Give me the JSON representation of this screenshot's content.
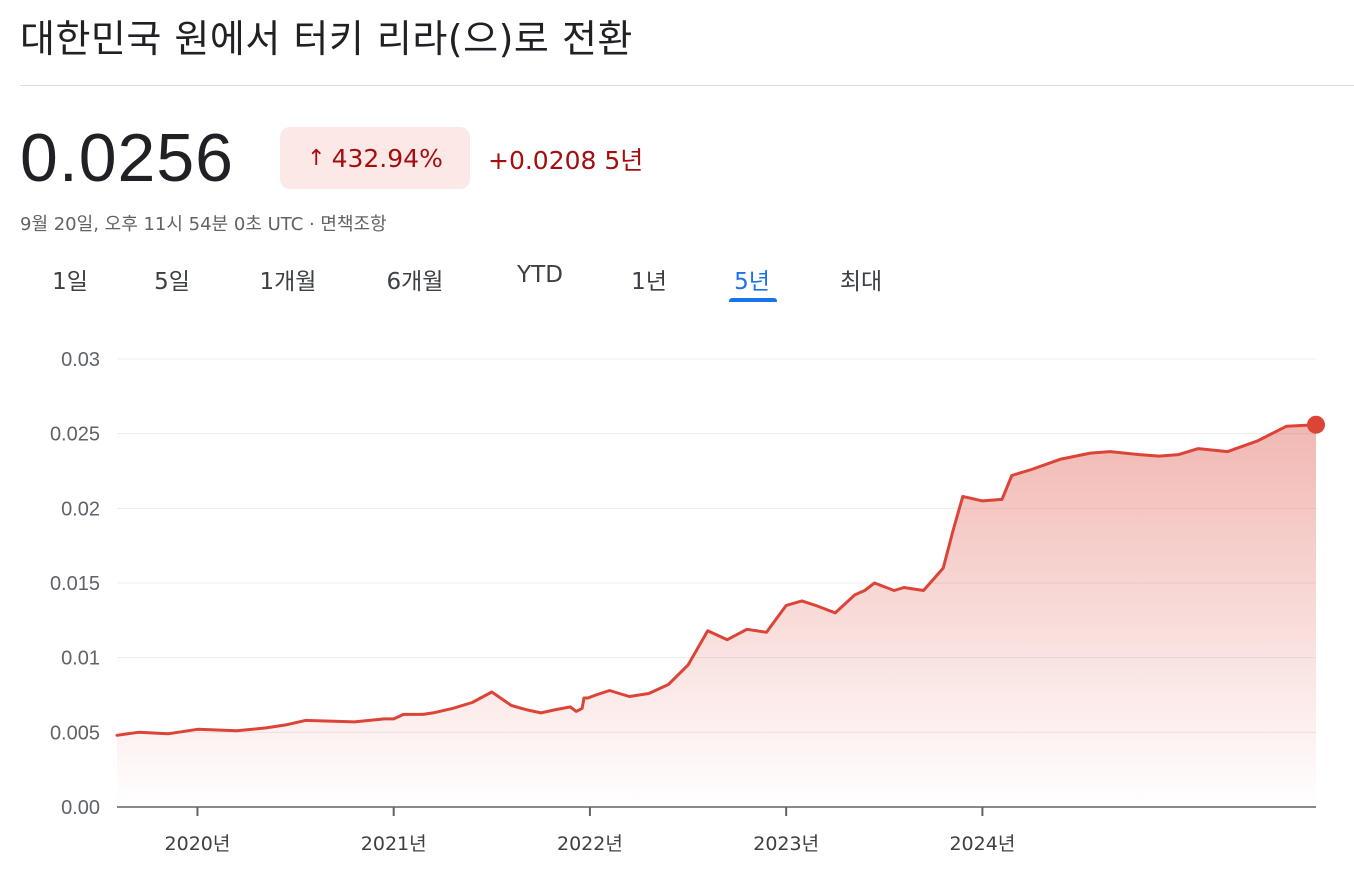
{
  "header": {
    "title": "대한민국 원에서 터키 리라(으)로 전환"
  },
  "quote": {
    "price": "0.0256",
    "percent_change": "432.94%",
    "abs_change": "+0.0208",
    "period": "5년",
    "arrow_icon": "arrow-up-icon",
    "timestamp": "9월 20일, 오후 11시 54분 0초 UTC · 면책조항"
  },
  "tabs": [
    {
      "label": "1일",
      "active": false
    },
    {
      "label": "5일",
      "active": false
    },
    {
      "label": "1개월",
      "active": false
    },
    {
      "label": "6개월",
      "active": false
    },
    {
      "label": "YTD",
      "active": false
    },
    {
      "label": "1년",
      "active": false
    },
    {
      "label": "5년",
      "active": true
    },
    {
      "label": "최대",
      "active": false
    }
  ],
  "colors": {
    "line": "#db4437",
    "accent": "#1a73e8",
    "negative_text": "#a50e0e",
    "badge_bg": "#fce8e6"
  },
  "chart_data": {
    "type": "area",
    "title": "",
    "xlabel": "",
    "ylabel": "",
    "ylim": [
      0,
      0.03
    ],
    "y_ticks": [
      "0.03",
      "0.025",
      "0.02",
      "0.015",
      "0.01",
      "0.005",
      "0.00"
    ],
    "y_tick_values": [
      0.03,
      0.025,
      0.02,
      0.015,
      0.01,
      0.005,
      0
    ],
    "x_ticks": [
      {
        "label": "2020년",
        "value": 2020.0
      },
      {
        "label": "2021년",
        "value": 2021.0
      },
      {
        "label": "2022년",
        "value": 2022.0
      },
      {
        "label": "2023년",
        "value": 2023.0
      },
      {
        "label": "2024년",
        "value": 2024.0
      }
    ],
    "xlim": [
      2019.59,
      2025.7
    ],
    "grid": true,
    "series": [
      {
        "x": [
          2019.59,
          2019.7,
          2019.85,
          2020.0,
          2020.2,
          2020.35,
          2020.45,
          2020.55,
          2020.8,
          2020.95,
          2021.0,
          2021.05,
          2021.15,
          2021.2,
          2021.3,
          2021.4,
          2021.5,
          2021.6,
          2021.68,
          2021.75,
          2021.82,
          2021.9,
          2021.93,
          2021.96,
          2021.97,
          2021.99,
          2022.03,
          2022.1,
          2022.2,
          2022.3,
          2022.4,
          2022.5,
          2022.6,
          2022.7,
          2022.8,
          2022.9,
          2023.0,
          2023.08,
          2023.15,
          2023.25,
          2023.35,
          2023.4,
          2023.45,
          2023.55,
          2023.6,
          2023.7,
          2023.8,
          2023.85,
          2023.9,
          2024.0,
          2024.1,
          2024.15,
          2024.25,
          2024.4,
          2024.55,
          2024.65,
          2024.8,
          2024.9,
          2025.0,
          2025.1,
          2025.25,
          2025.4,
          2025.55,
          2025.7
        ],
        "y": [
          0.0048,
          0.005,
          0.0049,
          0.0052,
          0.0051,
          0.0053,
          0.0055,
          0.0058,
          0.0057,
          0.0059,
          0.0059,
          0.0062,
          0.0062,
          0.0063,
          0.0066,
          0.007,
          0.0077,
          0.0068,
          0.0065,
          0.0063,
          0.0065,
          0.0067,
          0.0064,
          0.0066,
          0.0073,
          0.0073,
          0.0075,
          0.0078,
          0.0074,
          0.0076,
          0.0082,
          0.0095,
          0.0118,
          0.0112,
          0.0119,
          0.0117,
          0.0135,
          0.0138,
          0.0135,
          0.013,
          0.0142,
          0.0145,
          0.015,
          0.0145,
          0.0147,
          0.0145,
          0.016,
          0.0185,
          0.0208,
          0.0205,
          0.0206,
          0.0222,
          0.0226,
          0.0233,
          0.0237,
          0.0238,
          0.0236,
          0.0235,
          0.0236,
          0.024,
          0.0238,
          0.0245,
          0.0255,
          0.0256
        ]
      }
    ]
  }
}
